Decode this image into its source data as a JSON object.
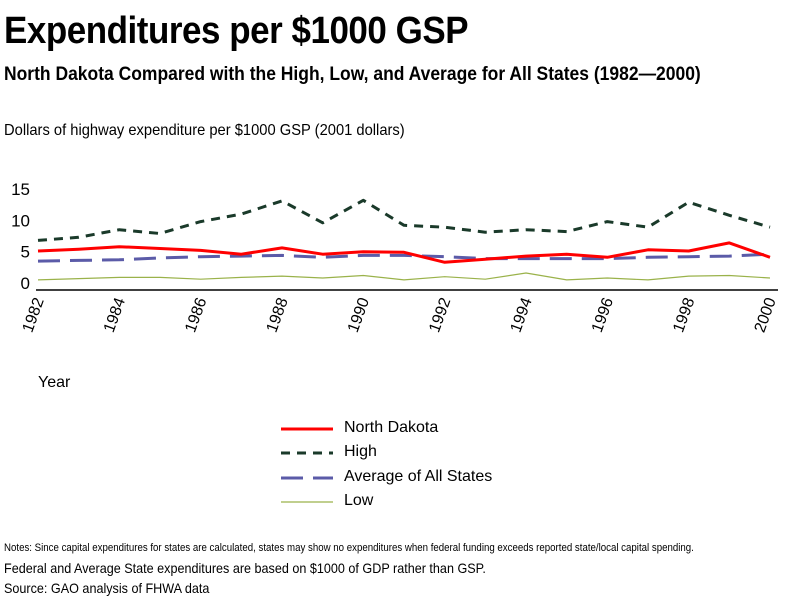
{
  "chart_data": {
    "type": "line",
    "title": "Expenditures per $1000 GSP",
    "subtitle": "North Dakota Compared with the High, Low, and Average for All States (1982—2000)",
    "ylabel": "Dollars of highway expenditure per $1000 GSP  (2001 dollars)",
    "xlabel": "Year",
    "ylim": [
      0,
      15
    ],
    "yticks": [
      "15",
      "10",
      "5",
      "0"
    ],
    "ytick_values": [
      15,
      10,
      5,
      0
    ],
    "xticks": [
      "1982",
      "1984",
      "1986",
      "1988",
      "1990",
      "1992",
      "1994",
      "1996",
      "1998",
      "2000"
    ],
    "x": [
      1982,
      1983,
      1984,
      1985,
      1986,
      1987,
      1988,
      1989,
      1990,
      1991,
      1992,
      1993,
      1994,
      1995,
      1996,
      1997,
      1998,
      1999,
      2000
    ],
    "grid": false,
    "legend_position": "bottom-center",
    "series": [
      {
        "name": "North Dakota",
        "color": "#ff0000",
        "style": "solid",
        "values": [
          5.1,
          5.4,
          5.8,
          5.5,
          5.2,
          4.6,
          5.6,
          4.6,
          5.0,
          4.9,
          3.3,
          3.8,
          4.3,
          4.6,
          4.1,
          5.3,
          5.1,
          6.4,
          4.1
        ]
      },
      {
        "name": "High",
        "color": "#1a3a2a",
        "style": "short-dash",
        "values": [
          6.8,
          7.3,
          8.5,
          7.9,
          9.8,
          11.0,
          13.1,
          9.6,
          13.2,
          9.2,
          8.9,
          8.1,
          8.5,
          8.2,
          9.8,
          8.9,
          12.9,
          10.8,
          8.9
        ]
      },
      {
        "name": "Average of All States",
        "color": "#5b5ba8",
        "style": "long-dash",
        "values": [
          3.5,
          3.6,
          3.7,
          4.0,
          4.2,
          4.3,
          4.4,
          4.1,
          4.4,
          4.4,
          4.2,
          3.9,
          3.9,
          3.9,
          3.9,
          4.1,
          4.2,
          4.3,
          4.6
        ]
      },
      {
        "name": "Low",
        "color": "#9ab24a",
        "style": "thin",
        "values": [
          0.5,
          0.7,
          0.9,
          0.9,
          0.6,
          0.9,
          1.1,
          0.8,
          1.2,
          0.5,
          1.0,
          0.6,
          1.6,
          0.5,
          0.8,
          0.5,
          1.1,
          1.2,
          0.8
        ]
      }
    ]
  },
  "notes": {
    "line1": "Notes: Since capital expenditures for states are calculated, states may show no expenditures when federal funding exceeds reported state/local capital spending.",
    "line2": "Federal and Average State expenditures are based on $1000 of GDP rather than GSP.",
    "line3": "Source: GAO  analysis of FHWA data"
  }
}
